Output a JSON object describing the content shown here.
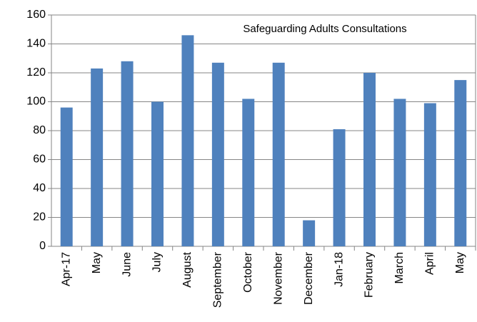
{
  "chart_data": {
    "type": "bar",
    "title": "Safeguarding Adults Consultations",
    "categories": [
      "Apr-17",
      "May",
      "June",
      "July",
      "August",
      "September",
      "October",
      "November",
      "December",
      "Jan-18",
      "February",
      "March",
      "April",
      "May"
    ],
    "values": [
      96,
      123,
      128,
      100,
      146,
      127,
      102,
      127,
      18,
      81,
      120,
      102,
      99,
      115
    ],
    "color": "#4f81bd",
    "ylim": [
      0,
      160
    ],
    "yticks": [
      0,
      20,
      40,
      60,
      80,
      100,
      120,
      140,
      160
    ],
    "grid": true
  }
}
